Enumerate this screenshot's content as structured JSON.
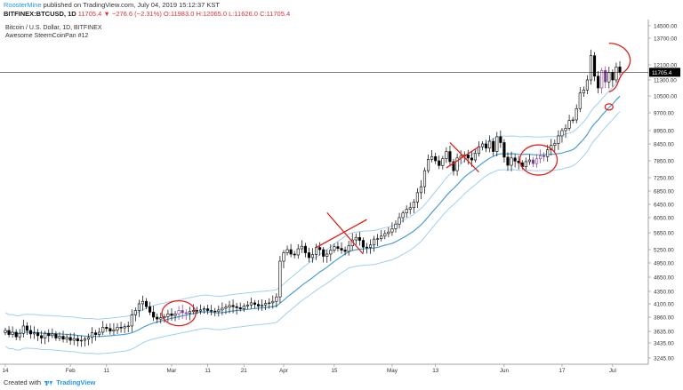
{
  "header": {
    "author": "RoosterMine",
    "published_text": "published on TradingView.com, July 04, 2019 15:12:37 KST",
    "symbol_line": "BITFINEX:BTCUSD, 1D",
    "last": "11705.4",
    "change": "−276.6 (−2.31%)",
    "ohlc": "O:11983.0 H:12065.0 L:11626.0 C:11705.4"
  },
  "footer": {
    "created_with": "Created with",
    "brand": "TradingView"
  },
  "colors": {
    "bull": "#ffffff",
    "bear": "#000000",
    "highlight": "#7b3f8f",
    "ma_line": "#4a9fd6",
    "band": "#9fd0ef",
    "annotation": "#e0201b",
    "price_line": "#000000"
  },
  "chart_data": {
    "type": "candlestick",
    "title": "Bitcoin / U.S. Dollar, 1D, BITFINEX",
    "subtitle": "Awesome SteemCoinPan #12",
    "ylim": [
      3100,
      14800
    ],
    "yticks": [
      "14500.00",
      "13700.00",
      "12100.00",
      "11300.00",
      "10500.00",
      "9700.00",
      "8950.00",
      "8450.00",
      "7850.00",
      "7250.00",
      "6850.00",
      "6450.00",
      "6050.00",
      "5650.00",
      "5250.00",
      "4950.00",
      "4650.00",
      "4350.00",
      "4100.00",
      "3860.00",
      "3635.00",
      "3435.00",
      "3245.00"
    ],
    "ytick_values": [
      14500,
      13700,
      12100,
      11300,
      10500,
      9700,
      8950,
      8450,
      7850,
      7250,
      6850,
      6450,
      6050,
      5650,
      5250,
      4950,
      4650,
      4350,
      4100,
      3860,
      3635,
      3435,
      3245
    ],
    "current_price_label": "11705.4",
    "current_price": 11705.4,
    "xticks": [
      {
        "label": "14",
        "day": 0
      },
      {
        "label": "Feb",
        "day": 18
      },
      {
        "label": "11",
        "day": 28
      },
      {
        "label": "Mar",
        "day": 46
      },
      {
        "label": "11",
        "day": 56
      },
      {
        "label": "21",
        "day": 66
      },
      {
        "label": "Apr",
        "day": 77
      },
      {
        "label": "15",
        "day": 91
      },
      {
        "label": "May",
        "day": 107
      },
      {
        "label": "13",
        "day": 119
      },
      {
        "label": "Jun",
        "day": 138
      },
      {
        "label": "17",
        "day": 154
      },
      {
        "label": "Jul",
        "day": 168
      }
    ],
    "closes": [
      3650,
      3580,
      3620,
      3540,
      3600,
      3720,
      3650,
      3590,
      3610,
      3560,
      3520,
      3600,
      3560,
      3590,
      3520,
      3550,
      3500,
      3530,
      3480,
      3510,
      3470,
      3480,
      3500,
      3530,
      3610,
      3580,
      3620,
      3700,
      3680,
      3640,
      3660,
      3700,
      3690,
      3710,
      3720,
      3900,
      3980,
      4100,
      4150,
      4050,
      3950,
      3860,
      3830,
      3850,
      3870,
      3920,
      3890,
      3920,
      3980,
      3940,
      3930,
      3960,
      3980,
      3970,
      3990,
      4010,
      3980,
      3970,
      3960,
      3990,
      4020,
      4040,
      4070,
      4050,
      4030,
      4010,
      4060,
      4080,
      4120,
      4090,
      4060,
      4080,
      4110,
      4120,
      4150,
      4240,
      4990,
      5180,
      5250,
      5150,
      5130,
      5270,
      5330,
      5180,
      5070,
      5140,
      5300,
      5250,
      5100,
      5150,
      5240,
      5320,
      5280,
      5240,
      5210,
      5340,
      5480,
      5540,
      5470,
      5310,
      5300,
      5360,
      5500,
      5510,
      5570,
      5630,
      5670,
      5760,
      5880,
      6050,
      6190,
      6300,
      6350,
      6520,
      6800,
      6980,
      7500,
      7900,
      8000,
      7850,
      7680,
      7930,
      8180,
      7820,
      7500,
      7950,
      8010,
      8060,
      7950,
      7880,
      8110,
      8350,
      8450,
      8300,
      8550,
      8180,
      8720,
      8500,
      7980,
      7690,
      7950,
      7840,
      7780,
      7640,
      7820,
      7880,
      7750,
      7920,
      8030,
      8000,
      8240,
      8400,
      8470,
      8750,
      8950,
      9050,
      9380,
      9400,
      9900,
      10650,
      10800,
      11300,
      12650,
      11500,
      10900,
      11800,
      11200,
      11700,
      11300,
      11990,
      11705
    ]
  }
}
